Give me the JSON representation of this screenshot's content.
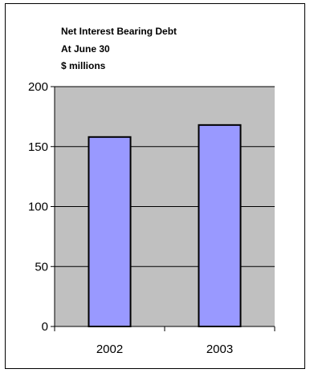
{
  "chart_data": {
    "type": "bar",
    "title_lines": [
      "Net Interest Bearing Debt",
      "At June 30",
      "$ millions"
    ],
    "categories": [
      "2002",
      "2003"
    ],
    "values": [
      158,
      168
    ],
    "ylim": [
      0,
      200
    ],
    "yticks": [
      0,
      50,
      100,
      150,
      200
    ],
    "grid": true,
    "legend": "none",
    "colors": {
      "bar": "#9999FF",
      "plot_bg": "#C0C0C0",
      "gridline": "#000000"
    }
  }
}
